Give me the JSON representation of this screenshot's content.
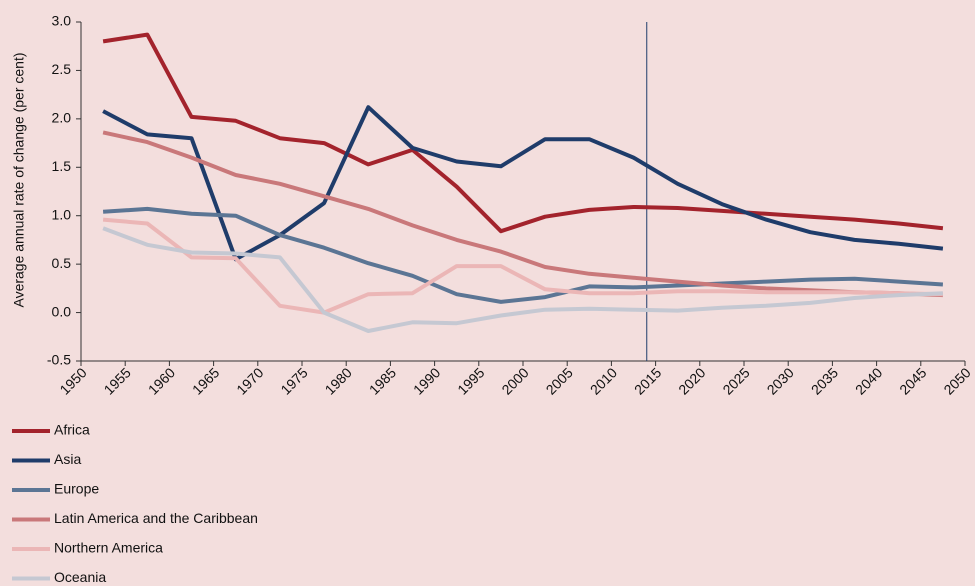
{
  "chart_data": {
    "type": "line",
    "y_axis_label": "Average annual rate of change (per cent)",
    "x": [
      1952.5,
      1957.5,
      1962.5,
      1967.5,
      1972.5,
      1977.5,
      1982.5,
      1987.5,
      1992.5,
      1997.5,
      2002.5,
      2007.5,
      2012.5,
      2017.5,
      2022.5,
      2027.5,
      2032.5,
      2037.5,
      2042.5,
      2047.5
    ],
    "series": [
      {
        "name": "Africa",
        "color": "#a3232c",
        "values": [
          2.8,
          2.87,
          2.02,
          1.98,
          1.8,
          1.75,
          1.53,
          1.68,
          1.3,
          0.84,
          0.99,
          1.06,
          1.09,
          1.08,
          1.05,
          1.02,
          0.99,
          0.96,
          0.92,
          0.87
        ]
      },
      {
        "name": "Asia",
        "color": "#1f3c6a",
        "values": [
          2.08,
          1.84,
          1.8,
          0.55,
          0.8,
          1.13,
          2.12,
          1.7,
          1.56,
          1.51,
          1.79,
          1.79,
          1.6,
          1.33,
          1.12,
          0.96,
          0.83,
          0.75,
          0.71,
          0.66
        ]
      },
      {
        "name": "Europe",
        "color": "#5b7594",
        "values": [
          1.04,
          1.07,
          1.02,
          1.0,
          0.8,
          0.67,
          0.51,
          0.38,
          0.19,
          0.11,
          0.16,
          0.27,
          0.26,
          0.28,
          0.3,
          0.32,
          0.34,
          0.35,
          0.32,
          0.29
        ]
      },
      {
        "name": "Latin America and the Caribbean",
        "color": "#c9787a",
        "values": [
          1.86,
          1.76,
          1.6,
          1.42,
          1.33,
          1.2,
          1.07,
          0.9,
          0.75,
          0.63,
          0.47,
          0.4,
          0.36,
          0.32,
          0.28,
          0.25,
          0.23,
          0.21,
          0.2,
          0.18
        ]
      },
      {
        "name": "Northern America",
        "color": "#ebb6b6",
        "values": [
          0.96,
          0.92,
          0.57,
          0.56,
          0.07,
          0.0,
          0.19,
          0.2,
          0.48,
          0.48,
          0.24,
          0.2,
          0.2,
          0.22,
          0.22,
          0.21,
          0.21,
          0.21,
          0.2,
          0.19
        ]
      },
      {
        "name": "Oceania",
        "color": "#c5c8d2",
        "values": [
          0.87,
          0.7,
          0.62,
          0.61,
          0.57,
          0.0,
          -0.19,
          -0.1,
          -0.11,
          -0.03,
          0.03,
          0.04,
          0.03,
          0.02,
          0.05,
          0.07,
          0.1,
          0.15,
          0.18,
          0.2
        ]
      }
    ],
    "xlim": [
      1950,
      2050
    ],
    "xticks": [
      1950,
      1955,
      1960,
      1965,
      1970,
      1975,
      1980,
      1985,
      1990,
      1995,
      2000,
      2005,
      2010,
      2015,
      2020,
      2025,
      2030,
      2035,
      2040,
      2045,
      2050
    ],
    "ylim": [
      -0.5,
      3.0
    ],
    "yticks": [
      {
        "value": -0.5,
        "label": "-0.5"
      },
      {
        "value": 0,
        "label": "0.0"
      },
      {
        "value": 0.5,
        "label": "0.5"
      },
      {
        "value": 1,
        "label": "1.0"
      },
      {
        "value": 1.5,
        "label": "1.5"
      },
      {
        "value": 2,
        "label": "2.0"
      },
      {
        "value": 2.5,
        "label": "2.5"
      },
      {
        "value": 3,
        "label": "3.0"
      }
    ],
    "vline": {
      "x": 2014,
      "color": "#1f3c6a"
    },
    "grid": false,
    "legend": "bottom-left"
  }
}
